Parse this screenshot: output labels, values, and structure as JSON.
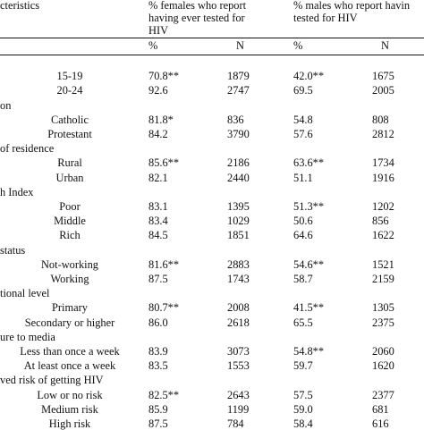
{
  "header": {
    "characteristics": "cteristics",
    "females_title": [
      "% females who report",
      "having ever tested for",
      "HIV"
    ],
    "males_title": [
      "% males who report havin",
      "tested for HIV"
    ],
    "pct": "%",
    "n": "N"
  },
  "rows": [
    {
      "type": "section",
      "label": ""
    },
    {
      "type": "data",
      "label": "15-19",
      "f_pct": "70.8**",
      "f_n": "1879",
      "m_pct": "42.0**",
      "m_n": "1675"
    },
    {
      "type": "data",
      "label": "20-24",
      "f_pct": "92.6",
      "f_n": "2747",
      "m_pct": "69.5",
      "m_n": "2005"
    },
    {
      "type": "section",
      "label": "on"
    },
    {
      "type": "data",
      "label": "Catholic",
      "f_pct": "81.8*",
      "f_n": "836",
      "m_pct": "54.8",
      "m_n": "808"
    },
    {
      "type": "data",
      "label": "Protestant",
      "f_pct": "84.2",
      "f_n": "3790",
      "m_pct": "57.6",
      "m_n": "2812"
    },
    {
      "type": "section",
      "label": "of residence"
    },
    {
      "type": "data",
      "label": "Rural",
      "f_pct": "85.6**",
      "f_n": "2186",
      "m_pct": "63.6**",
      "m_n": "1734"
    },
    {
      "type": "data",
      "label": "Urban",
      "f_pct": "82.1",
      "f_n": "2440",
      "m_pct": "51.1",
      "m_n": "1916"
    },
    {
      "type": "section",
      "label": "h Index"
    },
    {
      "type": "data",
      "label": "Poor",
      "f_pct": "83.1",
      "f_n": "1395",
      "m_pct": "51.3**",
      "m_n": "1202"
    },
    {
      "type": "data",
      "label": "Middle",
      "f_pct": "83.4",
      "f_n": "1029",
      "m_pct": "50.6",
      "m_n": "856"
    },
    {
      "type": "data",
      "label": "Rich",
      "f_pct": "84.5",
      "f_n": "1851",
      "m_pct": "64.6",
      "m_n": "1622"
    },
    {
      "type": "section",
      "label": "status"
    },
    {
      "type": "data",
      "label": "Not-working",
      "f_pct": "81.6**",
      "f_n": "2883",
      "m_pct": "54.6**",
      "m_n": "1521"
    },
    {
      "type": "data",
      "label": "Working",
      "f_pct": "87.5",
      "f_n": "1743",
      "m_pct": "58.7",
      "m_n": "2159"
    },
    {
      "type": "section",
      "label": "tional level"
    },
    {
      "type": "data",
      "label": "Primary",
      "f_pct": "80.7**",
      "f_n": "2008",
      "m_pct": "41.5**",
      "m_n": "1305"
    },
    {
      "type": "data",
      "label": "Secondary or higher",
      "f_pct": "86.0",
      "f_n": "2618",
      "m_pct": "65.5",
      "m_n": "2375"
    },
    {
      "type": "section",
      "label": "ure to media"
    },
    {
      "type": "data",
      "label": "Less than once a week",
      "f_pct": "83.9",
      "f_n": "3073",
      "m_pct": "54.8**",
      "m_n": "2060"
    },
    {
      "type": "data",
      "label": "At least once a week",
      "f_pct": "83.5",
      "f_n": "1553",
      "m_pct": "59.7",
      "m_n": "1620"
    },
    {
      "type": "section",
      "label": "ved risk of getting HIV"
    },
    {
      "type": "data",
      "label": "Low or no risk",
      "f_pct": "82.5**",
      "f_n": "2643",
      "m_pct": "57.5",
      "m_n": "2377"
    },
    {
      "type": "data",
      "label": "Medium risk",
      "f_pct": "85.9",
      "f_n": "1199",
      "m_pct": "59.0",
      "m_n": "681"
    },
    {
      "type": "data",
      "label": "High risk",
      "f_pct": "87.5",
      "f_n": "784",
      "m_pct": "58.4",
      "m_n": "616"
    }
  ]
}
